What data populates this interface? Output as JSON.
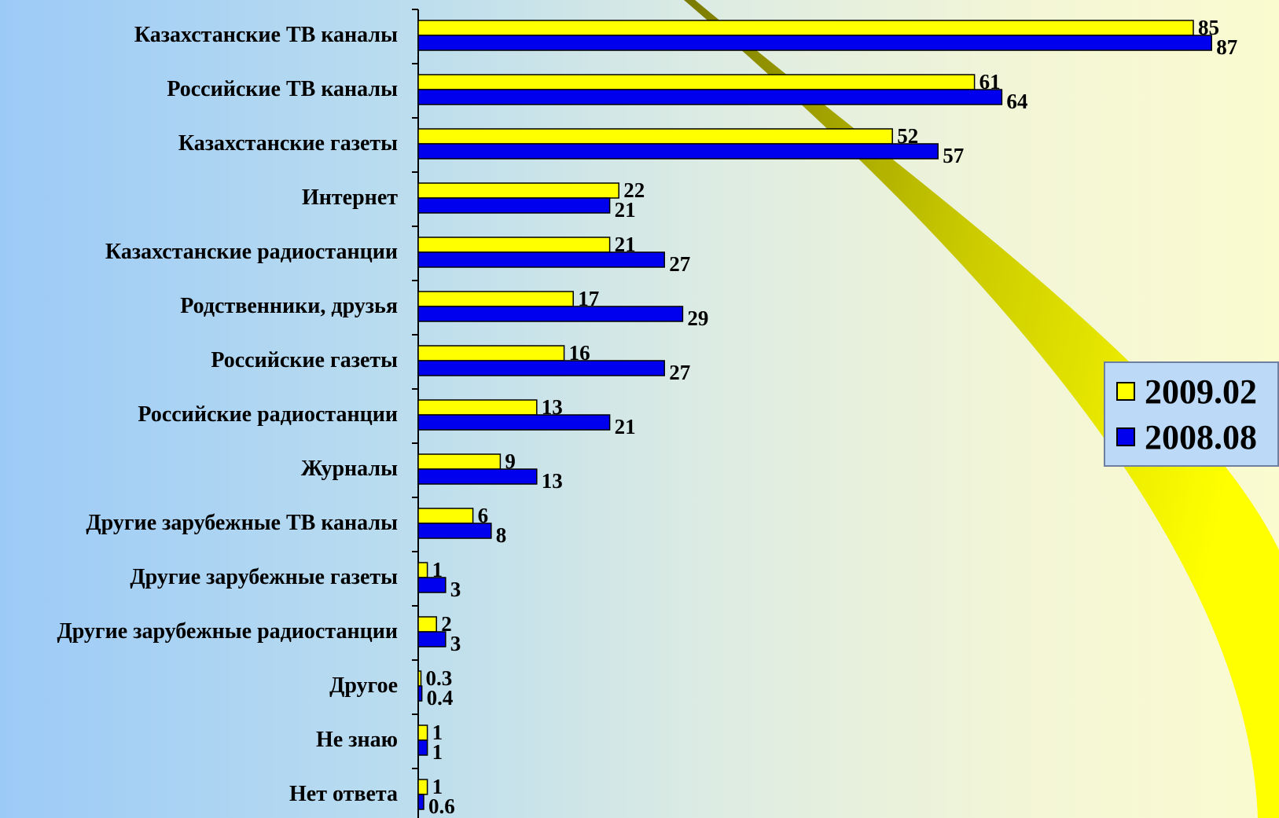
{
  "chart_data": {
    "type": "bar",
    "orientation": "horizontal",
    "categories": [
      "Казахстанские ТВ каналы",
      "Российские ТВ каналы",
      "Казахстанские газеты",
      "Интернет",
      "Казахстанские радиостанции",
      "Родственники, друзья",
      "Российские газеты",
      "Российские радиостанции",
      "Журналы",
      "Другие зарубежные ТВ каналы",
      "Другие зарубежные газеты",
      "Другие зарубежные радиостанции",
      "Другое",
      "Не знаю",
      "Нет ответа"
    ],
    "series": [
      {
        "name": "2009.02",
        "color": "#ffff00",
        "values": [
          85,
          61,
          52,
          22,
          21,
          17,
          16,
          13,
          9,
          6,
          1,
          2,
          0.3,
          1,
          1
        ],
        "labels": [
          "85",
          "61",
          "52",
          "22",
          "21",
          "17",
          "16",
          "13",
          "9",
          "6",
          "1",
          "2",
          "0.3",
          "1",
          "1"
        ]
      },
      {
        "name": "2008.08",
        "color": "#0000ee",
        "values": [
          87,
          64,
          57,
          21,
          27,
          29,
          27,
          21,
          13,
          8,
          3,
          3,
          0.4,
          1,
          0.6
        ],
        "labels": [
          "87",
          "64",
          "57",
          "21",
          "27",
          "29",
          "27",
          "21",
          "13",
          "8",
          "3",
          "3",
          "0.4",
          "1",
          "0.6"
        ]
      }
    ],
    "xlim": [
      0,
      100
    ],
    "grid": false,
    "legend_position": "right"
  }
}
